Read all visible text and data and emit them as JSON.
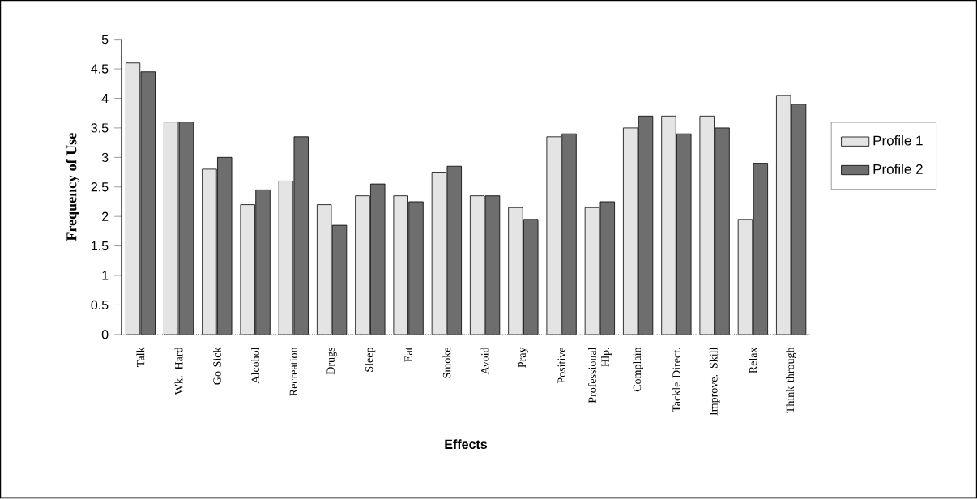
{
  "chart_data": {
    "type": "bar",
    "xlabel": "Effects",
    "ylabel": "Frequency of Use",
    "categories": [
      "Talk",
      "Wk. Hard",
      "Go Sick",
      "Alcohol",
      "Recreation",
      "Drugs",
      "Sleep",
      "Eat",
      "Smoke",
      "Avoid",
      "Pray",
      "Positive",
      "Professional Hlp.",
      "Complain",
      "Tackle Direct.",
      "Improve. Skill",
      "Relax",
      "Think through"
    ],
    "series": [
      {
        "name": "Profile 1",
        "color": "#e4e4e4",
        "values": [
          4.6,
          3.6,
          2.8,
          2.2,
          2.6,
          2.2,
          2.35,
          2.35,
          2.75,
          2.35,
          2.15,
          3.35,
          2.15,
          3.5,
          3.7,
          3.7,
          1.95,
          4.05
        ]
      },
      {
        "name": "Profile 2",
        "color": "#6e6e6e",
        "values": [
          4.45,
          3.6,
          3.0,
          2.45,
          3.35,
          1.85,
          2.55,
          2.25,
          2.85,
          2.35,
          1.95,
          3.4,
          2.25,
          3.7,
          3.4,
          3.5,
          2.9,
          3.9
        ]
      }
    ],
    "ylim": [
      0,
      5
    ],
    "yticks": [
      0,
      0.5,
      1,
      1.5,
      2,
      2.5,
      3,
      3.5,
      4,
      4.5,
      5
    ],
    "grid": false,
    "legend": "right"
  }
}
